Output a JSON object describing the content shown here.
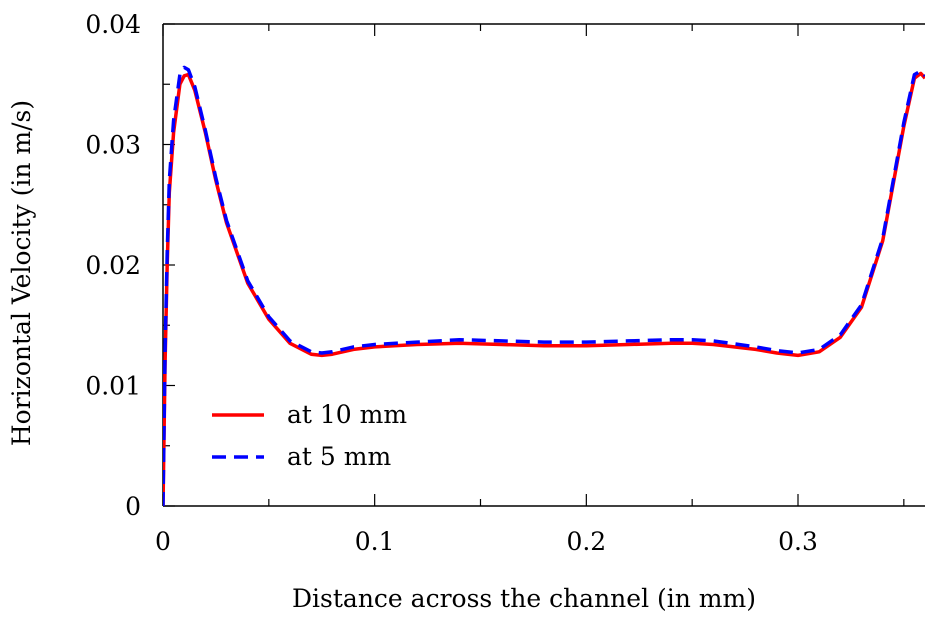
{
  "chart_data": {
    "type": "line",
    "title": "",
    "xlabel": "Distance across the channel (in mm)",
    "ylabel": "Horizontal Velocity (in m/s)",
    "xlim": [
      0,
      0.36
    ],
    "ylim": [
      0,
      0.04
    ],
    "x_ticks": [
      0,
      0.1,
      0.2,
      0.3
    ],
    "x_tick_labels": [
      "0",
      "0.1",
      "0.2",
      "0.3"
    ],
    "y_ticks": [
      0,
      0.01,
      0.02,
      0.03,
      0.04
    ],
    "y_tick_labels": [
      "0",
      "0.01",
      "0.02",
      "0.03",
      "0.04"
    ],
    "grid": false,
    "legend_position": "bottom-left",
    "series": [
      {
        "name": "at 10 mm",
        "color": "#ff0000",
        "dash": "solid",
        "x": [
          0.0,
          0.001,
          0.002,
          0.003,
          0.005,
          0.008,
          0.01,
          0.012,
          0.015,
          0.02,
          0.025,
          0.03,
          0.04,
          0.05,
          0.06,
          0.07,
          0.075,
          0.08,
          0.09,
          0.1,
          0.12,
          0.14,
          0.16,
          0.18,
          0.2,
          0.22,
          0.24,
          0.25,
          0.26,
          0.28,
          0.29,
          0.3,
          0.31,
          0.32,
          0.33,
          0.34,
          0.35,
          0.355,
          0.358,
          0.36
        ],
        "y": [
          0.0,
          0.012,
          0.02,
          0.026,
          0.031,
          0.035,
          0.0357,
          0.0358,
          0.0345,
          0.031,
          0.027,
          0.0235,
          0.0185,
          0.0155,
          0.0135,
          0.0126,
          0.0125,
          0.0126,
          0.013,
          0.0132,
          0.0134,
          0.0135,
          0.0134,
          0.0133,
          0.0133,
          0.0134,
          0.0135,
          0.0135,
          0.0134,
          0.013,
          0.0127,
          0.0125,
          0.0128,
          0.014,
          0.0165,
          0.022,
          0.0315,
          0.0355,
          0.0359,
          0.0355
        ]
      },
      {
        "name": "at 5 mm",
        "color": "#0000ff",
        "dash": "dashed",
        "x": [
          0.0,
          0.001,
          0.002,
          0.003,
          0.005,
          0.008,
          0.01,
          0.012,
          0.015,
          0.02,
          0.025,
          0.03,
          0.04,
          0.05,
          0.06,
          0.07,
          0.075,
          0.08,
          0.09,
          0.1,
          0.12,
          0.14,
          0.16,
          0.18,
          0.2,
          0.22,
          0.24,
          0.25,
          0.26,
          0.28,
          0.29,
          0.3,
          0.31,
          0.32,
          0.33,
          0.34,
          0.35,
          0.355,
          0.358,
          0.36
        ],
        "y": [
          0.0,
          0.013,
          0.021,
          0.027,
          0.032,
          0.0358,
          0.0364,
          0.0362,
          0.0348,
          0.0312,
          0.0272,
          0.0237,
          0.0187,
          0.0157,
          0.0137,
          0.0128,
          0.0127,
          0.0128,
          0.0132,
          0.0134,
          0.0136,
          0.0138,
          0.0137,
          0.0136,
          0.0136,
          0.0137,
          0.0138,
          0.0138,
          0.0137,
          0.0132,
          0.0129,
          0.0127,
          0.013,
          0.0142,
          0.0167,
          0.0222,
          0.0318,
          0.0358,
          0.0361,
          0.0357
        ]
      }
    ]
  }
}
